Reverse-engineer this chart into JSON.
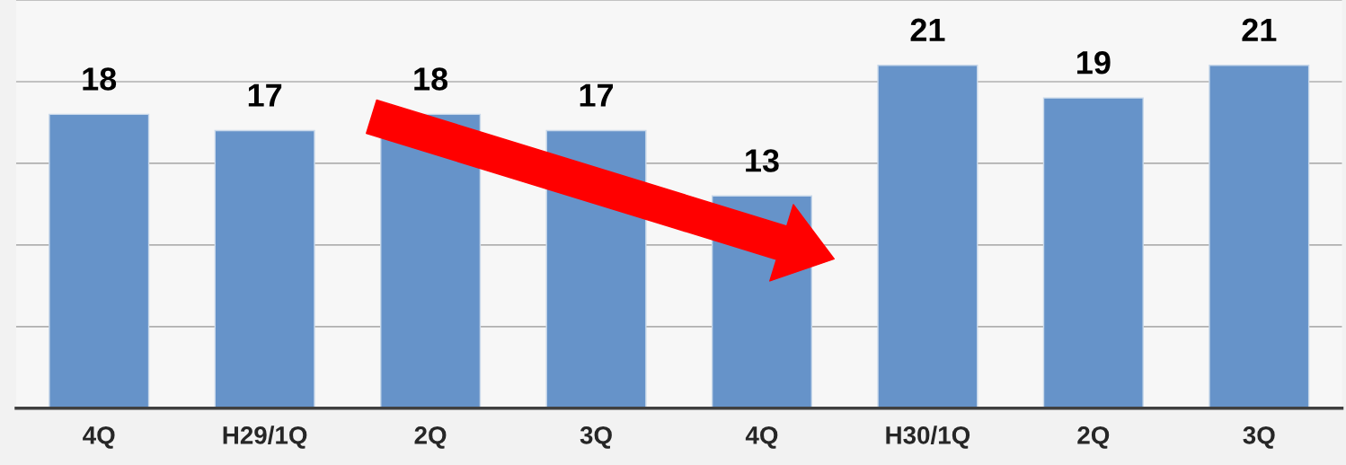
{
  "chart_data": {
    "type": "bar",
    "categories": [
      "4Q",
      "H29/1Q",
      "2Q",
      "3Q",
      "4Q",
      "H30/1Q",
      "2Q",
      "3Q"
    ],
    "values": [
      18,
      17,
      18,
      17,
      13,
      21,
      19,
      21
    ],
    "color": "#6693c9",
    "ylim": [
      0,
      25
    ],
    "yticks": [
      {
        "value": 0,
        "label": null
      },
      {
        "value": 5,
        "label": null
      },
      {
        "value": 10,
        "label": null
      },
      {
        "value": 15,
        "label": null
      },
      {
        "value": 20,
        "label": null
      },
      {
        "value": 25,
        "label": null
      }
    ],
    "tick_labels": "x",
    "grid": "y",
    "data_labels": true
  }
}
